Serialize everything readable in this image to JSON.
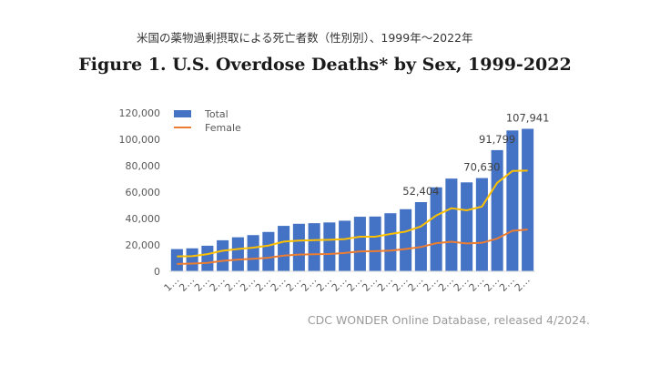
{
  "header": {
    "subtitle_jp": "米国の薬物過剰摂取による死亡者数（性別別）、1999年～2022年",
    "title": "Figure 1. U.S. Overdose Deaths* by Sex, 1999-2022"
  },
  "footer": {
    "source": "CDC WONDER Online Database, released 4/2024."
  },
  "colors": {
    "total": "#4472C4",
    "female": "#ED7D31",
    "male": "#FFC000"
  },
  "chart_data": {
    "type": "bar",
    "title": "Figure 1. U.S. Overdose Deaths* by Sex, 1999-2022",
    "xlabel": "",
    "ylabel": "",
    "ylim": [
      0,
      120000
    ],
    "yticks": [
      0,
      20000,
      40000,
      60000,
      80000,
      100000,
      120000
    ],
    "ytick_labels": [
      "0",
      "20,000",
      "40,000",
      "60,000",
      "80,000",
      "100,000",
      "120,000"
    ],
    "categories": [
      "1999",
      "2000",
      "2001",
      "2002",
      "2003",
      "2004",
      "2005",
      "2006",
      "2007",
      "2008",
      "2009",
      "2010",
      "2011",
      "2012",
      "2013",
      "2014",
      "2015",
      "2016",
      "2017",
      "2018",
      "2019",
      "2020",
      "2021",
      "2022"
    ],
    "tick_labels": [
      "1…",
      "2…",
      "2…",
      "2…",
      "2…",
      "2…",
      "2…",
      "2…",
      "2…",
      "2…",
      "2…",
      "2…",
      "2…",
      "2…",
      "2…",
      "2…",
      "2…",
      "2…",
      "2…",
      "2…",
      "2…",
      "2…",
      "2…",
      "2…"
    ],
    "legend": [
      "Total",
      "Female"
    ],
    "legend_position": "top-left",
    "series": [
      {
        "name": "Total",
        "type": "bar",
        "values": [
          16849,
          17415,
          19394,
          23518,
          25785,
          27424,
          29813,
          34425,
          36010,
          36450,
          37004,
          38329,
          41340,
          41502,
          43982,
          47055,
          52404,
          63632,
          70237,
          67367,
          70630,
          91799,
          106699,
          107941
        ]
      },
      {
        "name": "Female",
        "type": "line",
        "values": [
          5600,
          5900,
          6400,
          7900,
          8900,
          9500,
          10300,
          11900,
          12700,
          12900,
          13100,
          13900,
          15100,
          15300,
          15700,
          16900,
          18400,
          21300,
          22400,
          21100,
          21600,
          24800,
          30700,
          31600
        ]
      },
      {
        "name": "",
        "type": "line",
        "values": [
          11300,
          11500,
          13000,
          15600,
          16900,
          17900,
          19500,
          22500,
          23300,
          23600,
          23900,
          24400,
          26200,
          26200,
          28300,
          30100,
          34000,
          42300,
          47800,
          46200,
          49000,
          67000,
          76000,
          76300
        ]
      }
    ],
    "data_labels": [
      {
        "category": "2015",
        "text": "52,404"
      },
      {
        "category": "2019",
        "text": "70,630"
      },
      {
        "category": "2020",
        "text": "91,799"
      },
      {
        "category": "2022",
        "text": "107,941"
      }
    ]
  }
}
